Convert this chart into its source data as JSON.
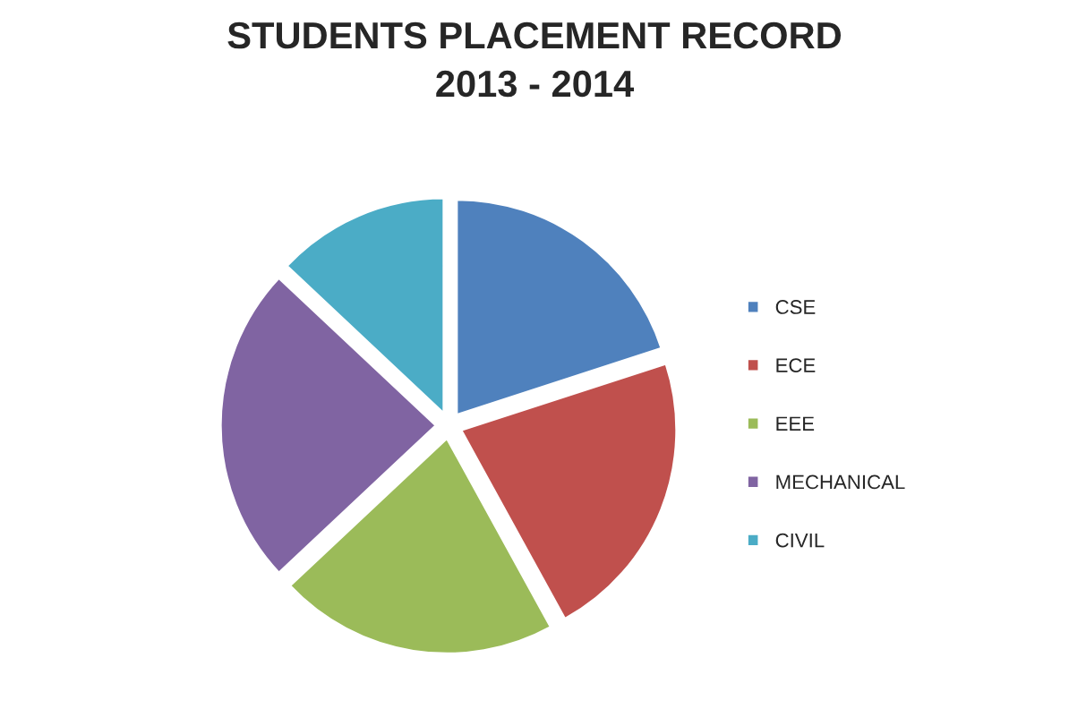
{
  "chart_data": {
    "type": "pie",
    "title": "STUDENTS PLACEMENT RECORD\n2013 - 2014",
    "categories": [
      "CSE",
      "ECE",
      "EEE",
      "MECHANICAL",
      "CIVIL"
    ],
    "values": [
      20,
      22,
      21,
      24,
      13
    ],
    "colors": [
      "#4f81bd",
      "#c0504d",
      "#9bbb59",
      "#8064a2",
      "#4bacc6"
    ],
    "legend": "right"
  }
}
